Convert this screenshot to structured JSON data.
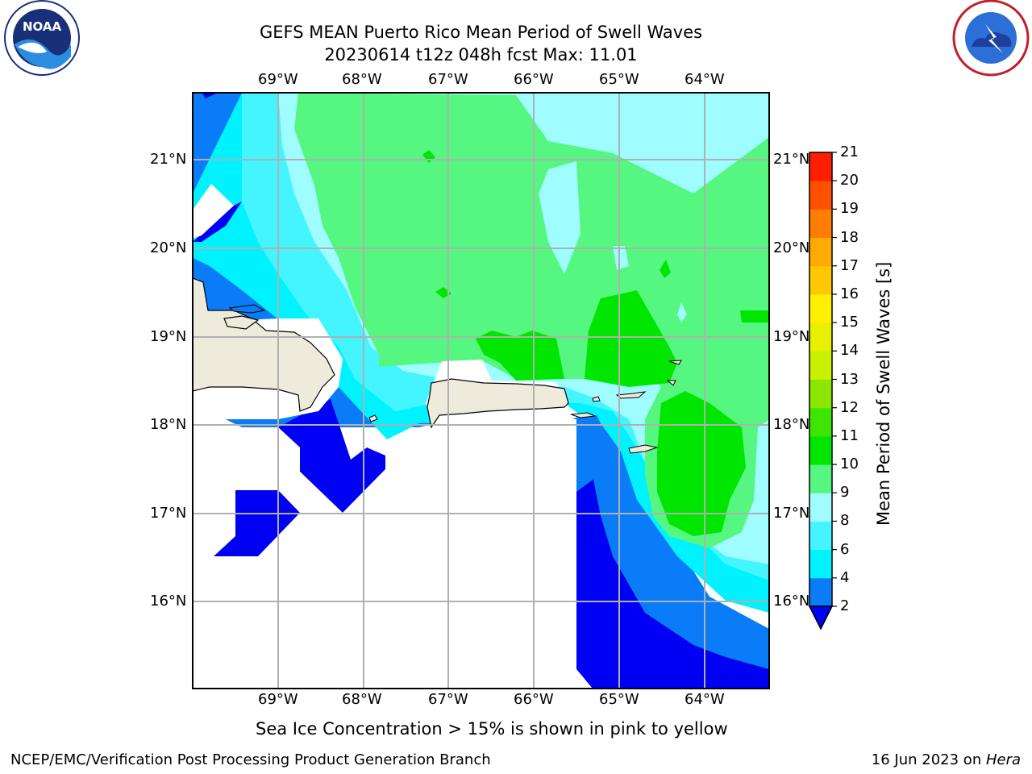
{
  "header": {
    "title_line1": "GEFS MEAN Puerto Rico Mean Period of Swell Waves",
    "title_line2": "20230614 t12z 048h fcst   Max: 11.01"
  },
  "logos": {
    "left": "NOAA",
    "right": "NATIONAL WEATHER SERVICE"
  },
  "map": {
    "lon_labels": [
      "69°W",
      "68°W",
      "67°W",
      "66°W",
      "65°W",
      "64°W"
    ],
    "lat_labels": [
      "21°N",
      "20°N",
      "19°N",
      "18°N",
      "17°N",
      "16°N"
    ],
    "colors": {
      "c2_4": "#0a7cf7",
      "c4_6": "#00f2ff",
      "c6_8": "#44f5ff",
      "c8_9": "#9ffcff",
      "c9_10": "#55f780",
      "c10_11": "#00e600",
      "below2": "#0000f2",
      "land": "#eeebdd",
      "grid": "#b0b0b0"
    }
  },
  "colorbar": {
    "title": "Mean Period of Swell Waves [s]",
    "ticks": [
      "2",
      "4",
      "6",
      "8",
      "9",
      "10",
      "11",
      "12",
      "13",
      "14",
      "15",
      "16",
      "17",
      "18",
      "19",
      "20",
      "21"
    ],
    "colors": [
      "#0a7cf7",
      "#00f2ff",
      "#44f5ff",
      "#9ffcff",
      "#55f780",
      "#00e600",
      "#3ce600",
      "#8ce600",
      "#c8f000",
      "#e6f000",
      "#fff000",
      "#ffc800",
      "#ffaa00",
      "#ff7d00",
      "#ff5000",
      "#ff1e00"
    ]
  },
  "annotation": "Sea Ice Concentration > 15% is shown in pink to yellow",
  "footer": {
    "left": "NCEP/EMC/Verification Post Processing Product Generation Branch",
    "date": "16 Jun 2023 on ",
    "host": "Hera"
  }
}
